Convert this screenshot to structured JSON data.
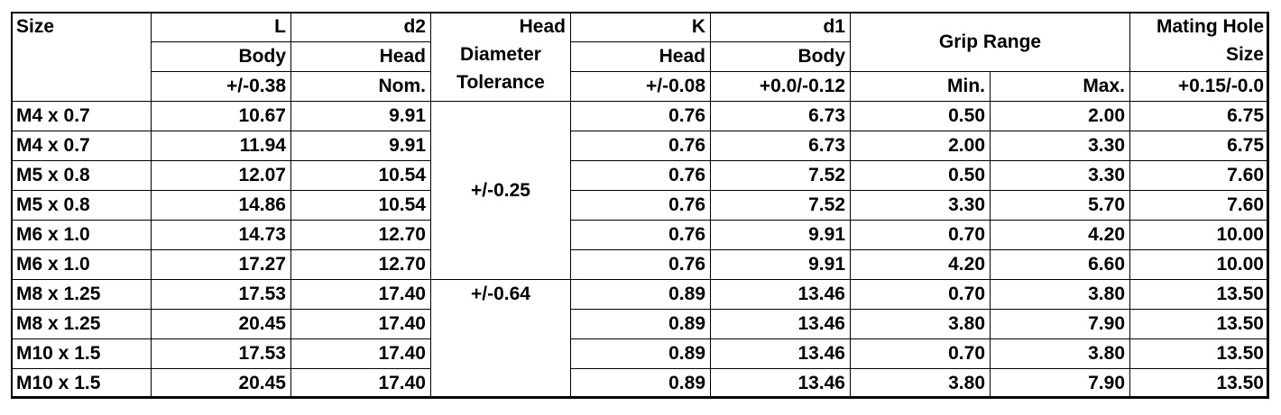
{
  "headers": {
    "size": "Size",
    "L": "L",
    "L_sub": "Body",
    "L_tol": "+/-0.38",
    "d2": "d2",
    "d2_sub": "Head",
    "d2_tol": "Nom.",
    "head_dia_tol_1": "Head",
    "head_dia_tol_2": "Diameter",
    "head_dia_tol_3": "Tolerance",
    "K": "K",
    "K_sub": "Head",
    "K_tol": "+/-0.08",
    "d1": "d1",
    "d1_sub": "Body",
    "d1_tol": "+0.0/-0.12",
    "grip_range": "Grip Range",
    "grip_min": "Min.",
    "grip_max": "Max.",
    "mating_1": "Mating Hole",
    "mating_2": "Size",
    "mating_tol": "+0.15/-0.0"
  },
  "tolerance_groups": [
    {
      "value": "+/-0.25",
      "rows": 6
    },
    {
      "value": "+/-0.64",
      "rows": 4
    }
  ],
  "rows": [
    {
      "size": "M4 x 0.7",
      "L": "10.67",
      "d2": "9.91",
      "K": "0.76",
      "d1": "6.73",
      "min": "0.50",
      "max": "2.00",
      "hole": "6.75"
    },
    {
      "size": "M4 x 0.7",
      "L": "11.94",
      "d2": "9.91",
      "K": "0.76",
      "d1": "6.73",
      "min": "2.00",
      "max": "3.30",
      "hole": "6.75"
    },
    {
      "size": "M5 x 0.8",
      "L": "12.07",
      "d2": "10.54",
      "K": "0.76",
      "d1": "7.52",
      "min": "0.50",
      "max": "3.30",
      "hole": "7.60"
    },
    {
      "size": "M5 x 0.8",
      "L": "14.86",
      "d2": "10.54",
      "K": "0.76",
      "d1": "7.52",
      "min": "3.30",
      "max": "5.70",
      "hole": "7.60"
    },
    {
      "size": "M6 x 1.0",
      "L": "14.73",
      "d2": "12.70",
      "K": "0.76",
      "d1": "9.91",
      "min": "0.70",
      "max": "4.20",
      "hole": "10.00"
    },
    {
      "size": "M6 x 1.0",
      "L": "17.27",
      "d2": "12.70",
      "K": "0.76",
      "d1": "9.91",
      "min": "4.20",
      "max": "6.60",
      "hole": "10.00"
    },
    {
      "size": "M8 x 1.25",
      "L": "17.53",
      "d2": "17.40",
      "K": "0.89",
      "d1": "13.46",
      "min": "0.70",
      "max": "3.80",
      "hole": "13.50"
    },
    {
      "size": "M8 x 1.25",
      "L": "20.45",
      "d2": "17.40",
      "K": "0.89",
      "d1": "13.46",
      "min": "3.80",
      "max": "7.90",
      "hole": "13.50"
    },
    {
      "size": "M10 x 1.5",
      "L": "17.53",
      "d2": "17.40",
      "K": "0.89",
      "d1": "13.46",
      "min": "0.70",
      "max": "3.80",
      "hole": "13.50"
    },
    {
      "size": "M10 x 1.5",
      "L": "20.45",
      "d2": "17.40",
      "K": "0.89",
      "d1": "13.46",
      "min": "3.80",
      "max": "7.90",
      "hole": "13.50"
    }
  ]
}
